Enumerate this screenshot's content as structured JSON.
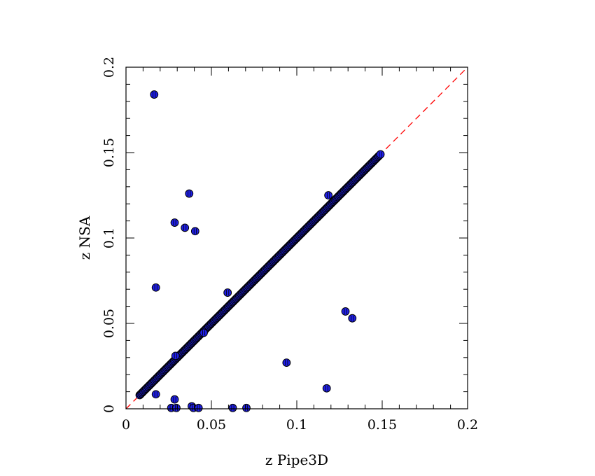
{
  "chart_data": {
    "type": "scatter",
    "title": "",
    "xlabel": "z Pipe3D",
    "ylabel": "z NSA",
    "xlim": [
      0,
      0.2
    ],
    "ylim": [
      0,
      0.2
    ],
    "x_ticks": [
      0,
      0.05,
      0.1,
      0.15,
      0.2
    ],
    "y_ticks": [
      0,
      0.05,
      0.1,
      0.15,
      0.2
    ],
    "x_tick_labels": [
      "0",
      "0.05",
      "0.1",
      "0.15",
      "0.2"
    ],
    "y_tick_labels": [
      "0",
      "0.05",
      "0.1",
      "0.15",
      "0.2"
    ],
    "grid": false,
    "legend": "none",
    "reference_line": {
      "x": [
        0,
        0.2
      ],
      "y": [
        0,
        0.2
      ],
      "style": "dashed",
      "color": "#ff0000"
    },
    "marker_color": "#1f1fe6",
    "marker_edge_color": "#000000",
    "main_sequence": {
      "x_start": 0.008,
      "x_end": 0.149,
      "count": 260,
      "relation": "y = x"
    },
    "outliers": [
      {
        "x": 0.0165,
        "y": 0.184
      },
      {
        "x": 0.037,
        "y": 0.126
      },
      {
        "x": 0.0285,
        "y": 0.109
      },
      {
        "x": 0.0345,
        "y": 0.106
      },
      {
        "x": 0.0405,
        "y": 0.104
      },
      {
        "x": 0.0175,
        "y": 0.071
      },
      {
        "x": 0.0595,
        "y": 0.068
      },
      {
        "x": 0.1285,
        "y": 0.057
      },
      {
        "x": 0.1325,
        "y": 0.053
      },
      {
        "x": 0.094,
        "y": 0.027
      },
      {
        "x": 0.1175,
        "y": 0.012
      },
      {
        "x": 0.1185,
        "y": 0.125
      },
      {
        "x": 0.0175,
        "y": 0.0085
      },
      {
        "x": 0.0285,
        "y": 0.0055
      },
      {
        "x": 0.0265,
        "y": 0.0005
      },
      {
        "x": 0.0295,
        "y": 0.0005
      },
      {
        "x": 0.0385,
        "y": 0.0015
      },
      {
        "x": 0.0395,
        "y": 0.0005
      },
      {
        "x": 0.0425,
        "y": 0.0005
      },
      {
        "x": 0.0625,
        "y": 0.0005
      },
      {
        "x": 0.0705,
        "y": 0.0005
      },
      {
        "x": 0.0455,
        "y": 0.0445
      },
      {
        "x": 0.029,
        "y": 0.031
      }
    ]
  }
}
